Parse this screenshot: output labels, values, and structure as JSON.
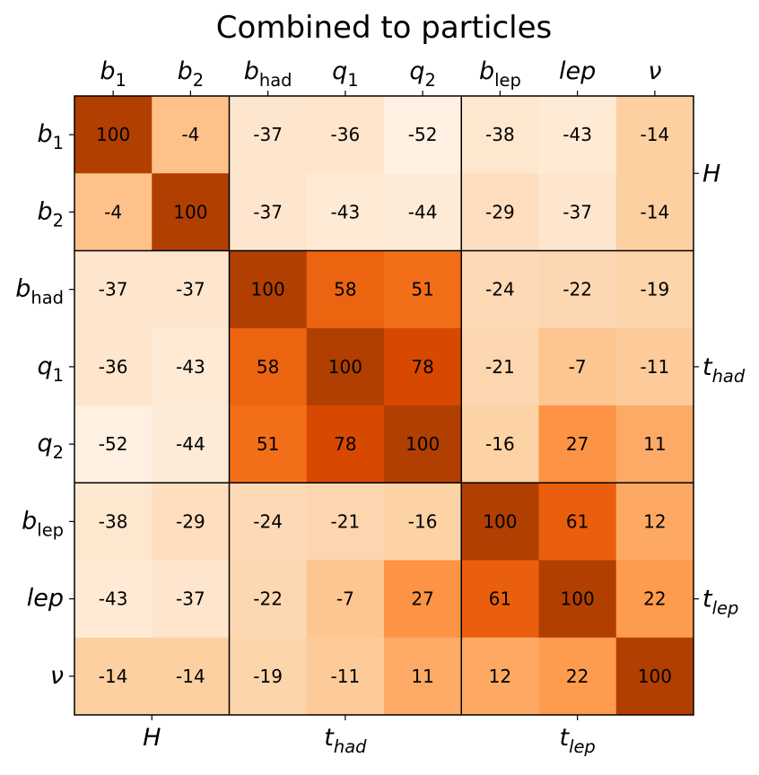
{
  "chart_data": {
    "type": "heatmap",
    "title": "Combined to particles",
    "labels": [
      {
        "base": "b",
        "sub": "1"
      },
      {
        "base": "b",
        "sub": "2"
      },
      {
        "base": "b",
        "sub": "had"
      },
      {
        "base": "q",
        "sub": "1"
      },
      {
        "base": "q",
        "sub": "2"
      },
      {
        "base": "b",
        "sub": "lep"
      },
      {
        "base": "lep",
        "sub": ""
      },
      {
        "base": "ν",
        "sub": ""
      }
    ],
    "groups": [
      {
        "base": "H",
        "sub": "",
        "start": 0,
        "end": 2
      },
      {
        "base": "t",
        "sub": "had",
        "start": 2,
        "end": 5
      },
      {
        "base": "t",
        "sub": "lep",
        "start": 5,
        "end": 8
      }
    ],
    "values": [
      [
        100,
        -4,
        -37,
        -36,
        -52,
        -38,
        -43,
        -14
      ],
      [
        -4,
        100,
        -37,
        -43,
        -44,
        -29,
        -37,
        -14
      ],
      [
        -37,
        -37,
        100,
        58,
        51,
        -24,
        -22,
        -19
      ],
      [
        -36,
        -43,
        58,
        100,
        78,
        -21,
        -7,
        -11
      ],
      [
        -52,
        -44,
        51,
        78,
        100,
        -16,
        27,
        11
      ],
      [
        -38,
        -29,
        -24,
        -21,
        -16,
        100,
        61,
        12
      ],
      [
        -43,
        -37,
        -22,
        -7,
        27,
        61,
        100,
        22
      ],
      [
        -14,
        -14,
        -19,
        -11,
        11,
        12,
        22,
        100
      ]
    ],
    "colormap": "Oranges",
    "value_range": [
      -60,
      100
    ],
    "colors": {
      "min": "#fff5eb",
      "mid": "#f16913",
      "max": "#b13f02"
    }
  }
}
